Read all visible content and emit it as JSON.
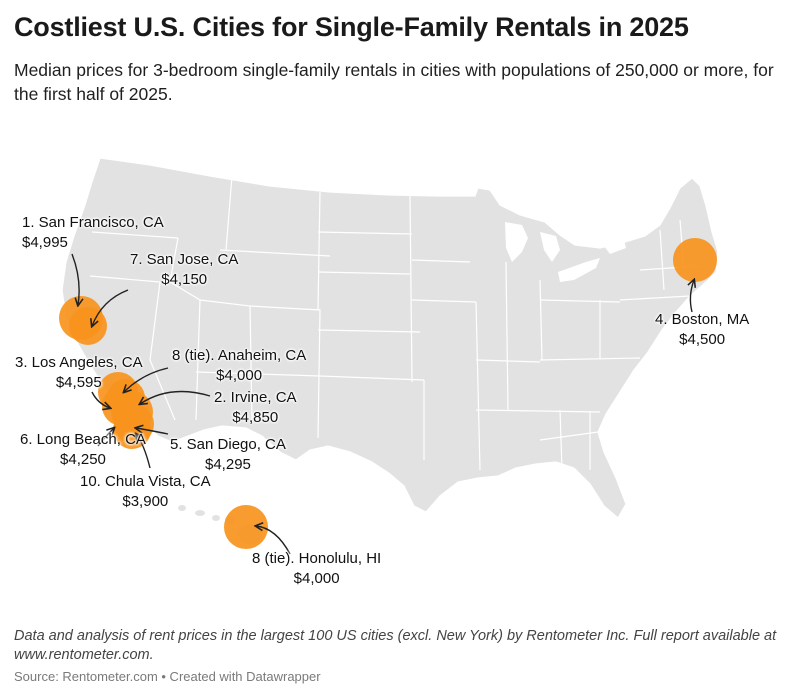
{
  "title": "Costliest U.S. Cities for Single-Family Rentals in 2025",
  "subtitle": "Median prices for 3-bedroom single-family rentals in cities with populations of 250,000 or more, for the first half of 2025.",
  "colors": {
    "marker": "#f7941d",
    "land": "#e2e2e2",
    "borders": "#ffffff",
    "text": "#1a1a1a"
  },
  "cities": [
    {
      "label": "1. San Francisco, CA",
      "price": "$4,995"
    },
    {
      "label": "2. Irvine, CA",
      "price": "$4,850"
    },
    {
      "label": "3. Los Angeles, CA",
      "price": "$4,595"
    },
    {
      "label": "4. Boston, MA",
      "price": "$4,500"
    },
    {
      "label": "5. San Diego, CA",
      "price": "$4,295"
    },
    {
      "label": "6. Long Beach, CA",
      "price": "$4,250"
    },
    {
      "label": "7. San Jose, CA",
      "price": "$4,150"
    },
    {
      "label": "8 (tie). Anaheim, CA",
      "price": "$4,000"
    },
    {
      "label": "8 (tie). Honolulu, HI",
      "price": "$4,000"
    },
    {
      "label": "10. Chula Vista, CA",
      "price": "$3,900"
    }
  ],
  "notes": "Data and analysis of rent prices in the largest 100 US cities (excl. New York) by Rentometer Inc. Full report available at www.rentometer.com.",
  "source": "Source: Rentometer.com • Created with Datawrapper"
}
